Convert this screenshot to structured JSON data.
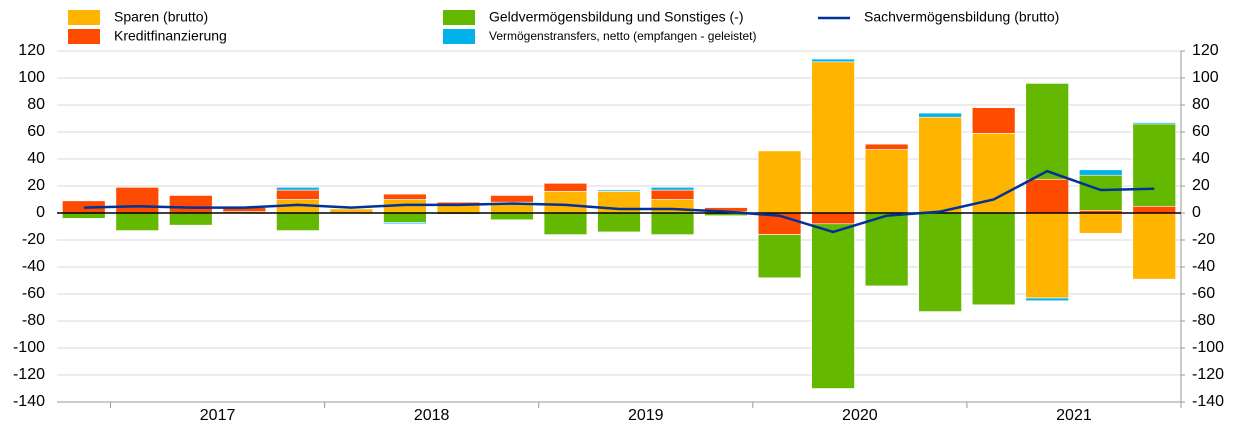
{
  "chart_data": {
    "type": "bar",
    "stacked": true,
    "categories": [
      null,
      null,
      null,
      null,
      null,
      null,
      null,
      null,
      null,
      null,
      null,
      null,
      null,
      null,
      null,
      null,
      null,
      null,
      null,
      null,
      null
    ],
    "x_group_labels": [
      "2017",
      "2018",
      "2019",
      "2020",
      "2021"
    ],
    "series": [
      {
        "name": "Sparen (brutto)",
        "color": "#ffb400",
        "type": "bar",
        "values": [
          0,
          0,
          0,
          1,
          10,
          3,
          10,
          6,
          8,
          16,
          16,
          10,
          1,
          46,
          112,
          47,
          71,
          59,
          -63,
          -15,
          -49
        ]
      },
      {
        "name": "Kreditfinanzierung",
        "color": "#ff4b00",
        "type": "bar",
        "values": [
          9,
          19,
          13,
          3,
          7,
          0,
          4,
          2,
          5,
          6,
          0,
          7,
          3,
          -16,
          -8,
          4,
          0,
          19,
          25,
          2,
          5
        ]
      },
      {
        "name": "Geldvermögensbildung und Sonstiges (-)",
        "color": "#65b800",
        "type": "bar",
        "values": [
          -4,
          -13,
          -9,
          0,
          -13,
          0,
          -7,
          -1,
          -5,
          -16,
          -14,
          -16,
          -2,
          -32,
          -122,
          -54,
          -73,
          -68,
          71,
          26,
          61
        ]
      },
      {
        "name": "Vermögenstransfers, netto (empfangen - geleistet)",
        "color": "#00b1ea",
        "type": "bar",
        "values": [
          0,
          0,
          0,
          0,
          2,
          0,
          -1,
          0,
          0,
          0,
          1,
          2,
          0,
          0,
          2,
          0,
          3,
          0,
          -2,
          4,
          1
        ]
      },
      {
        "name": "Sachvermögensbildung (brutto)",
        "color": "#003299",
        "type": "line",
        "values": [
          4,
          5,
          4,
          4,
          6,
          4,
          6,
          6,
          7,
          6,
          3,
          3,
          1,
          -2,
          -14,
          -2,
          1,
          10,
          31,
          17,
          18
        ]
      }
    ],
    "ylim": [
      -140,
      120
    ],
    "yticks": [
      -140,
      -120,
      -100,
      -80,
      -60,
      -40,
      -20,
      0,
      20,
      40,
      60,
      80,
      100,
      120
    ],
    "y2lim": [
      -140,
      120
    ],
    "y2ticks": [
      -140,
      -120,
      -100,
      -80,
      -60,
      -40,
      -20,
      0,
      20,
      40,
      60,
      80,
      100,
      120
    ],
    "grid": true
  }
}
